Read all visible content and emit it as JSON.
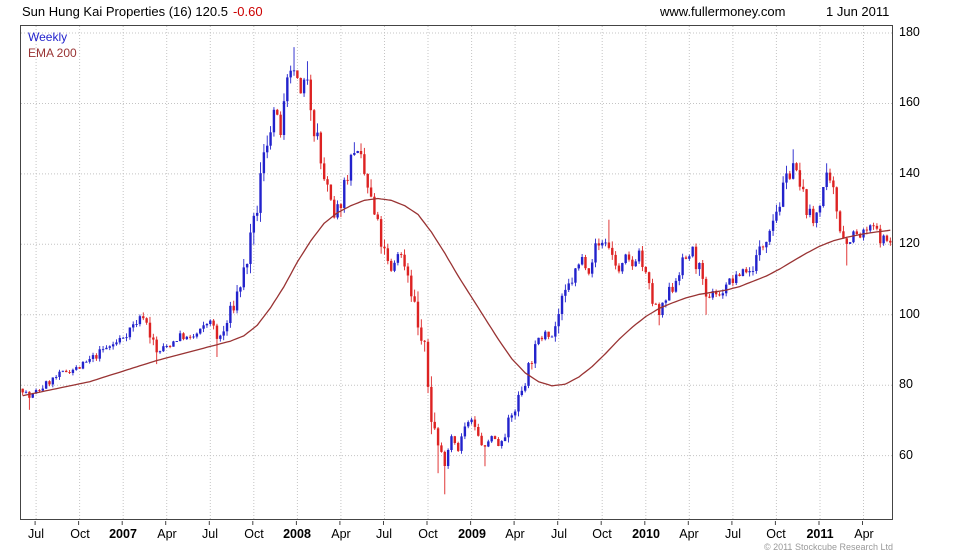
{
  "header": {
    "title": "Sun Hung Kai Properties (16) 120.5",
    "change": "-0.60",
    "site": "www.fullermoney.com",
    "date": "1 Jun 2011"
  },
  "legend": {
    "weekly": "Weekly",
    "ema": "EMA 200"
  },
  "footer": {
    "copyright": "© 2011 Stockcube Research Ltd"
  },
  "chart_data": {
    "type": "candlestick",
    "title": "Sun Hung Kai Properties (16) weekly candles with EMA 200 overlay",
    "xlabel": "",
    "ylabel": "",
    "ylim": [
      42,
      182
    ],
    "yticks": [
      60,
      80,
      100,
      120,
      140,
      160,
      180
    ],
    "weeks": 260,
    "seed": 7,
    "last_close": 120.5,
    "grid": true,
    "legend_position": "top-left",
    "series": [
      {
        "name": "Weekly",
        "type": "candlestick"
      },
      {
        "name": "EMA 200",
        "type": "line"
      }
    ],
    "colors": {
      "up": "#2222cc",
      "down": "#dd2222",
      "ema": "#993333",
      "grid": "#c4c4c4",
      "border": "#444444",
      "change_negative": "#cc0000"
    },
    "xticks": [
      {
        "week": 4,
        "label": "Jul",
        "year": false
      },
      {
        "week": 17,
        "label": "Oct",
        "year": false
      },
      {
        "week": 30,
        "label": "2007",
        "year": true
      },
      {
        "week": 43,
        "label": "Apr",
        "year": false
      },
      {
        "week": 56,
        "label": "Jul",
        "year": false
      },
      {
        "week": 69,
        "label": "Oct",
        "year": false
      },
      {
        "week": 82,
        "label": "2008",
        "year": true
      },
      {
        "week": 95,
        "label": "Apr",
        "year": false
      },
      {
        "week": 108,
        "label": "Jul",
        "year": false
      },
      {
        "week": 121,
        "label": "Oct",
        "year": false
      },
      {
        "week": 134,
        "label": "2009",
        "year": true
      },
      {
        "week": 147,
        "label": "Apr",
        "year": false
      },
      {
        "week": 160,
        "label": "Jul",
        "year": false
      },
      {
        "week": 173,
        "label": "Oct",
        "year": false
      },
      {
        "week": 186,
        "label": "2010",
        "year": true
      },
      {
        "week": 199,
        "label": "Apr",
        "year": false
      },
      {
        "week": 212,
        "label": "Jul",
        "year": false
      },
      {
        "week": 225,
        "label": "Oct",
        "year": false
      },
      {
        "week": 238,
        "label": "2011",
        "year": true
      },
      {
        "week": 251,
        "label": "Apr",
        "year": false
      }
    ],
    "price_anchors": [
      [
        0,
        79
      ],
      [
        2,
        76.5
      ],
      [
        4,
        78
      ],
      [
        8,
        81
      ],
      [
        13,
        84
      ],
      [
        17,
        85
      ],
      [
        20,
        87
      ],
      [
        24,
        90
      ],
      [
        28,
        92
      ],
      [
        30,
        94
      ],
      [
        33,
        97
      ],
      [
        36,
        100
      ],
      [
        38,
        95
      ],
      [
        40,
        89
      ],
      [
        43,
        91
      ],
      [
        47,
        94
      ],
      [
        50,
        93
      ],
      [
        54,
        96
      ],
      [
        56,
        99
      ],
      [
        58,
        93
      ],
      [
        60,
        95
      ],
      [
        63,
        103
      ],
      [
        66,
        112
      ],
      [
        69,
        124
      ],
      [
        71,
        138
      ],
      [
        73,
        150
      ],
      [
        75,
        158
      ],
      [
        77,
        152
      ],
      [
        79,
        164
      ],
      [
        81,
        170
      ],
      [
        83,
        162
      ],
      [
        85,
        168
      ],
      [
        87,
        155
      ],
      [
        89,
        143
      ],
      [
        91,
        135
      ],
      [
        93,
        127
      ],
      [
        95,
        133
      ],
      [
        97,
        141
      ],
      [
        99,
        147
      ],
      [
        101,
        143
      ],
      [
        103,
        136
      ],
      [
        105,
        128
      ],
      [
        108,
        117
      ],
      [
        110,
        112
      ],
      [
        112,
        118
      ],
      [
        114,
        115
      ],
      [
        116,
        108
      ],
      [
        118,
        97
      ],
      [
        120,
        88
      ],
      [
        122,
        72
      ],
      [
        124,
        63
      ],
      [
        126,
        58
      ],
      [
        128,
        66
      ],
      [
        130,
        62
      ],
      [
        132,
        68
      ],
      [
        134,
        70
      ],
      [
        136,
        65
      ],
      [
        138,
        62
      ],
      [
        140,
        66
      ],
      [
        142,
        63
      ],
      [
        144,
        67
      ],
      [
        146,
        71
      ],
      [
        148,
        76
      ],
      [
        150,
        82
      ],
      [
        152,
        88
      ],
      [
        154,
        92
      ],
      [
        156,
        96
      ],
      [
        158,
        94
      ],
      [
        161,
        103
      ],
      [
        163,
        108
      ],
      [
        165,
        112
      ],
      [
        167,
        116
      ],
      [
        169,
        113
      ],
      [
        171,
        119
      ],
      [
        174,
        121
      ],
      [
        176,
        117
      ],
      [
        178,
        112
      ],
      [
        180,
        116
      ],
      [
        182,
        114
      ],
      [
        184,
        118
      ],
      [
        186,
        110
      ],
      [
        188,
        104
      ],
      [
        190,
        100
      ],
      [
        192,
        104
      ],
      [
        194,
        108
      ],
      [
        196,
        113
      ],
      [
        198,
        116
      ],
      [
        200,
        118
      ],
      [
        202,
        112
      ],
      [
        204,
        104
      ],
      [
        206,
        107
      ],
      [
        208,
        105
      ],
      [
        210,
        109
      ],
      [
        213,
        110
      ],
      [
        215,
        113
      ],
      [
        217,
        112
      ],
      [
        219,
        116
      ],
      [
        221,
        120
      ],
      [
        223,
        126
      ],
      [
        226,
        132
      ],
      [
        228,
        138
      ],
      [
        230,
        143
      ],
      [
        232,
        136
      ],
      [
        234,
        131
      ],
      [
        236,
        126
      ],
      [
        238,
        133
      ],
      [
        240,
        139
      ],
      [
        242,
        134
      ],
      [
        244,
        126
      ],
      [
        246,
        120
      ],
      [
        248,
        123
      ],
      [
        250,
        122
      ],
      [
        252,
        124
      ],
      [
        254,
        125
      ],
      [
        256,
        122
      ],
      [
        258,
        121
      ],
      [
        259,
        120.5
      ]
    ],
    "ema_anchors": [
      [
        0,
        77
      ],
      [
        10,
        79
      ],
      [
        20,
        81
      ],
      [
        30,
        84
      ],
      [
        40,
        87
      ],
      [
        50,
        89.5
      ],
      [
        56,
        91
      ],
      [
        62,
        92.5
      ],
      [
        66,
        94
      ],
      [
        70,
        97
      ],
      [
        74,
        102
      ],
      [
        78,
        108
      ],
      [
        82,
        115
      ],
      [
        86,
        121
      ],
      [
        90,
        126
      ],
      [
        94,
        129
      ],
      [
        98,
        131
      ],
      [
        102,
        132.5
      ],
      [
        106,
        133
      ],
      [
        110,
        132.5
      ],
      [
        114,
        131
      ],
      [
        118,
        128.5
      ],
      [
        122,
        123.5
      ],
      [
        126,
        117.5
      ],
      [
        130,
        111
      ],
      [
        134,
        105
      ],
      [
        138,
        99
      ],
      [
        142,
        93
      ],
      [
        146,
        87.5
      ],
      [
        150,
        83.5
      ],
      [
        154,
        81
      ],
      [
        158,
        79.8
      ],
      [
        162,
        80.3
      ],
      [
        166,
        82.3
      ],
      [
        170,
        85.3
      ],
      [
        174,
        89
      ],
      [
        178,
        93
      ],
      [
        182,
        96.5
      ],
      [
        186,
        99.5
      ],
      [
        190,
        101.8
      ],
      [
        194,
        103.4
      ],
      [
        198,
        104.8
      ],
      [
        202,
        105.8
      ],
      [
        206,
        106.4
      ],
      [
        210,
        107
      ],
      [
        214,
        108
      ],
      [
        218,
        109.5
      ],
      [
        222,
        111
      ],
      [
        226,
        113
      ],
      [
        230,
        115.3
      ],
      [
        234,
        117.5
      ],
      [
        238,
        119.5
      ],
      [
        242,
        121
      ],
      [
        246,
        122
      ],
      [
        250,
        122.8
      ],
      [
        254,
        123.4
      ],
      [
        259,
        124
      ]
    ],
    "extremes": [
      {
        "week": 2,
        "low": 73
      },
      {
        "week": 40,
        "low": 86
      },
      {
        "week": 58,
        "low": 88
      },
      {
        "week": 81,
        "high": 176
      },
      {
        "week": 85,
        "high": 172
      },
      {
        "week": 99,
        "high": 149
      },
      {
        "week": 124,
        "low": 55
      },
      {
        "week": 126,
        "low": 49
      },
      {
        "week": 138,
        "low": 57
      },
      {
        "week": 175,
        "high": 127
      },
      {
        "week": 190,
        "low": 97
      },
      {
        "week": 204,
        "low": 100
      },
      {
        "week": 230,
        "high": 147
      },
      {
        "week": 240,
        "high": 143
      },
      {
        "week": 246,
        "low": 114
      }
    ]
  }
}
